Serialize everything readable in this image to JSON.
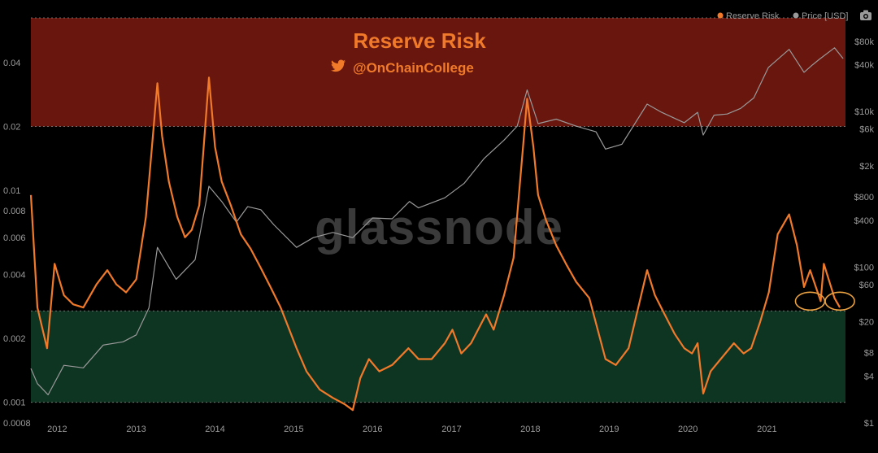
{
  "chart_data": {
    "type": "line",
    "title": "Reserve Risk",
    "subtitle": "@OnChainCollege",
    "watermark": "glassnode",
    "legend": {
      "placement": "top-right",
      "items": [
        {
          "label": "Reserve Risk",
          "color": "#f07a2a"
        },
        {
          "label": "Price [USD]",
          "color": "#9a9a9a"
        }
      ]
    },
    "x_axis": {
      "type": "date",
      "range": [
        "2011-09-01",
        "2021-12-31"
      ],
      "tick_labels": [
        "2012",
        "2013",
        "2014",
        "2015",
        "2016",
        "2017",
        "2018",
        "2019",
        "2020",
        "2021"
      ]
    },
    "y_left": {
      "name": "Reserve Risk",
      "scale": "log",
      "range": [
        0.0008,
        0.065
      ],
      "tick_labels": [
        "0.0008",
        "0.001",
        "0.002",
        "0.004",
        "0.006",
        "0.008",
        "0.01",
        "0.02",
        "0.04"
      ]
    },
    "y_right": {
      "name": "Price [USD]",
      "scale": "log",
      "range": [
        1,
        160000
      ],
      "tick_labels": [
        "$1",
        "$4",
        "$8",
        "$20",
        "$60",
        "$100",
        "$400",
        "$800",
        "$2k",
        "$6k",
        "$10k",
        "$40k",
        "$80k"
      ]
    },
    "zones": [
      {
        "name": "high-risk",
        "from": 0.02,
        "to": 0.065,
        "color": "#7a1a10"
      },
      {
        "name": "low-risk",
        "from": 0.001,
        "to": 0.0027,
        "color": "#0f3a26"
      }
    ],
    "series": [
      {
        "name": "Reserve Risk",
        "axis": "left",
        "color": "#f07a2a",
        "x": [
          "2011-09-01",
          "2011-10-01",
          "2011-11-15",
          "2011-12-20",
          "2012-02-01",
          "2012-03-15",
          "2012-05-01",
          "2012-07-01",
          "2012-08-20",
          "2012-10-01",
          "2012-11-15",
          "2013-01-01",
          "2013-02-15",
          "2013-03-15",
          "2013-04-09",
          "2013-05-01",
          "2013-06-01",
          "2013-07-10",
          "2013-08-15",
          "2013-09-15",
          "2013-10-20",
          "2013-12-04",
          "2014-01-01",
          "2014-02-01",
          "2014-03-15",
          "2014-05-01",
          "2014-06-15",
          "2014-08-01",
          "2014-09-15",
          "2014-11-01",
          "2015-01-14",
          "2015-03-01",
          "2015-05-01",
          "2015-07-01",
          "2015-08-25",
          "2015-10-01",
          "2015-11-05",
          "2015-12-15",
          "2016-02-01",
          "2016-04-01",
          "2016-06-15",
          "2016-08-01",
          "2016-10-01",
          "2016-12-01",
          "2017-01-05",
          "2017-02-15",
          "2017-04-01",
          "2017-06-10",
          "2017-07-15",
          "2017-09-01",
          "2017-10-15",
          "2017-12-17",
          "2018-01-15",
          "2018-02-06",
          "2018-03-15",
          "2018-05-01",
          "2018-06-15",
          "2018-08-01",
          "2018-10-01",
          "2018-12-15",
          "2019-02-01",
          "2019-04-01",
          "2019-06-26",
          "2019-08-01",
          "2019-09-15",
          "2019-11-01",
          "2019-12-15",
          "2020-01-20",
          "2020-02-15",
          "2020-03-12",
          "2020-04-15",
          "2020-06-01",
          "2020-08-01",
          "2020-09-15",
          "2020-10-20",
          "2020-12-01",
          "2021-01-10",
          "2021-02-20",
          "2021-04-14",
          "2021-05-20",
          "2021-06-22",
          "2021-07-20",
          "2021-09-07",
          "2021-09-22",
          "2021-11-10",
          "2021-12-05"
        ],
        "values": [
          0.0095,
          0.0028,
          0.0018,
          0.0045,
          0.0032,
          0.0029,
          0.0028,
          0.0036,
          0.0042,
          0.0036,
          0.0033,
          0.0038,
          0.0075,
          0.016,
          0.032,
          0.018,
          0.011,
          0.0075,
          0.006,
          0.0065,
          0.0085,
          0.034,
          0.016,
          0.011,
          0.0085,
          0.0062,
          0.0053,
          0.0043,
          0.0035,
          0.0028,
          0.0018,
          0.0014,
          0.00115,
          0.00105,
          0.00098,
          0.00092,
          0.0013,
          0.0016,
          0.0014,
          0.0015,
          0.0018,
          0.0016,
          0.0016,
          0.0019,
          0.0022,
          0.0017,
          0.0019,
          0.0026,
          0.0022,
          0.0032,
          0.0048,
          0.027,
          0.016,
          0.0095,
          0.0072,
          0.0055,
          0.0045,
          0.0037,
          0.0031,
          0.0016,
          0.0015,
          0.0018,
          0.0042,
          0.0032,
          0.0026,
          0.0021,
          0.0018,
          0.0017,
          0.0019,
          0.0011,
          0.0014,
          0.0016,
          0.0019,
          0.0017,
          0.0018,
          0.0024,
          0.0033,
          0.0062,
          0.0077,
          0.0055,
          0.0035,
          0.0042,
          0.003,
          0.0045,
          0.0031,
          0.0028
        ]
      },
      {
        "name": "Price [USD]",
        "axis": "right",
        "color": "#9a9a9a",
        "x": [
          "2011-09-01",
          "2011-10-01",
          "2011-11-20",
          "2012-02-01",
          "2012-05-01",
          "2012-08-01",
          "2012-11-01",
          "2013-01-01",
          "2013-03-01",
          "2013-04-09",
          "2013-07-05",
          "2013-10-01",
          "2013-12-04",
          "2014-02-01",
          "2014-04-10",
          "2014-06-01",
          "2014-08-01",
          "2014-10-01",
          "2015-01-14",
          "2015-04-01",
          "2015-07-01",
          "2015-10-01",
          "2016-01-01",
          "2016-04-01",
          "2016-06-20",
          "2016-08-01",
          "2016-12-01",
          "2017-03-01",
          "2017-06-01",
          "2017-09-01",
          "2017-11-01",
          "2017-12-17",
          "2018-02-06",
          "2018-05-01",
          "2018-08-01",
          "2018-11-01",
          "2018-12-15",
          "2019-03-01",
          "2019-06-26",
          "2019-09-01",
          "2019-12-15",
          "2020-02-15",
          "2020-03-12",
          "2020-05-01",
          "2020-07-01",
          "2020-09-01",
          "2020-11-01",
          "2021-01-08",
          "2021-04-14",
          "2021-06-22",
          "2021-08-01",
          "2021-09-01",
          "2021-11-10",
          "2021-12-20"
        ],
        "values": [
          5,
          3.2,
          2.3,
          5.5,
          5.1,
          10,
          11,
          13.5,
          30,
          180,
          70,
          125,
          1100,
          700,
          380,
          600,
          550,
          350,
          180,
          240,
          280,
          240,
          430,
          420,
          700,
          580,
          780,
          1200,
          2500,
          4300,
          6500,
          19000,
          7000,
          8000,
          6500,
          5500,
          3300,
          3800,
          12500,
          9800,
          7200,
          9800,
          5000,
          9000,
          9300,
          11000,
          15000,
          37000,
          63000,
          32000,
          40000,
          47000,
          66000,
          48000
        ]
      }
    ],
    "annotations": [
      {
        "type": "circle-highlight",
        "date": "2021-07-20",
        "value": 0.003
      },
      {
        "type": "circle-highlight",
        "date": "2021-12-05",
        "value": 0.003
      }
    ]
  }
}
